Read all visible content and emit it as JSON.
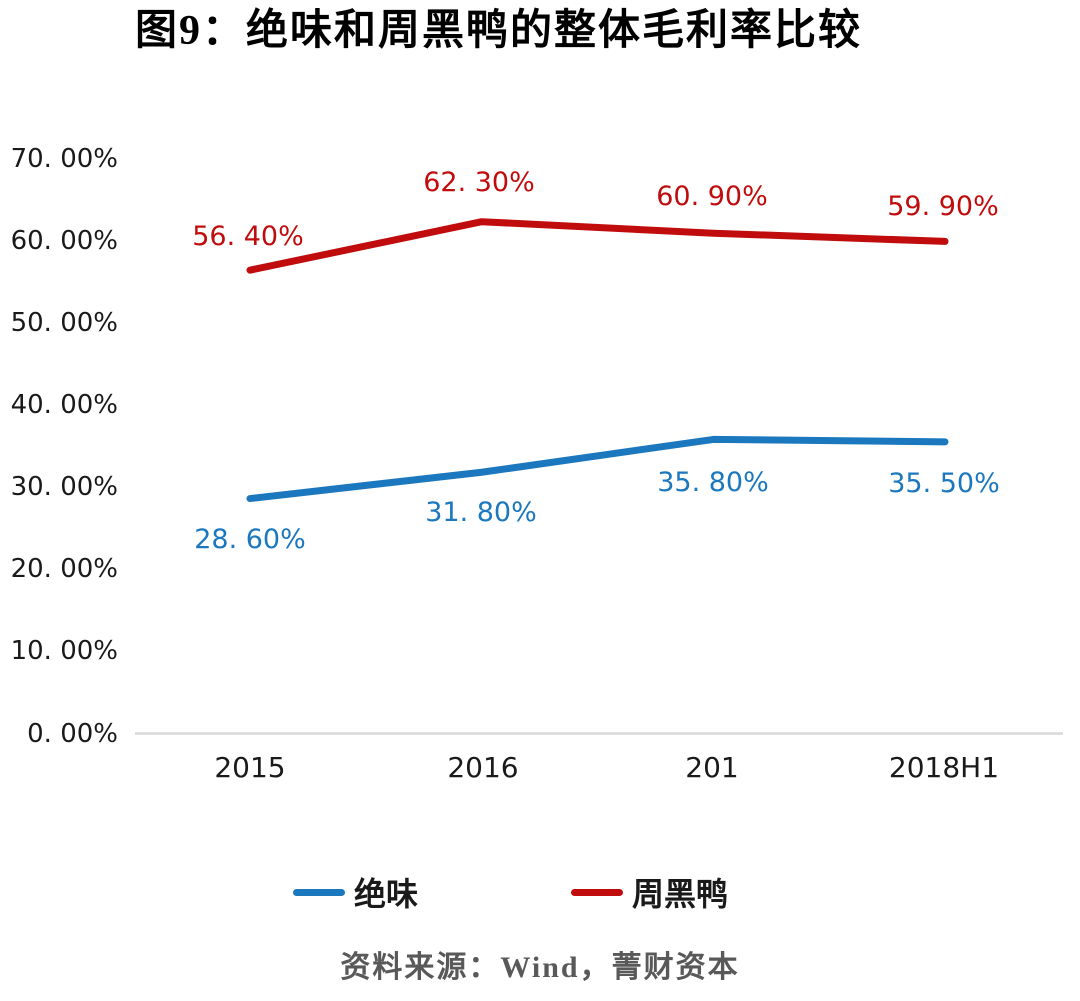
{
  "page": {
    "background": "#FFFFFF"
  },
  "chart": {
    "title": "图9：绝味和周黑鸭的整体毛利率比较",
    "source": "资料来源：Wind，菁财资本",
    "y_tick_labels": [
      "70. 00%",
      "60. 00%",
      "50. 00%",
      "40. 00%",
      "30. 00%",
      "20. 00%",
      "10. 00%",
      "0. 00%"
    ],
    "x_tick_labels": [
      "2015",
      "2016",
      "201",
      "2018H1"
    ],
    "colors": {
      "axis_line": "#D9D9D9",
      "tick_text": "#1A1A1A",
      "title_text": "#000000",
      "source_text": "#595959",
      "juewei_blue": "#1B78BE",
      "zhouheiya_red": "#C00C0C"
    }
  },
  "chart_data": {
    "type": "line",
    "title": "图9：绝味和周黑鸭的整体毛利率比较",
    "categories": [
      "2015",
      "2016",
      "201",
      "2018H1"
    ],
    "series": [
      {
        "name": "绝味",
        "color": "#1B78BE",
        "values": [
          28.6,
          31.8,
          35.8,
          35.5
        ],
        "point_labels": [
          "28. 60%",
          "31. 80%",
          "35. 80%",
          "35. 50%"
        ]
      },
      {
        "name": "周黑鸭",
        "color": "#C00C0C",
        "values": [
          56.4,
          62.3,
          60.9,
          59.9
        ],
        "point_labels": [
          "56. 40%",
          "62. 30%",
          "60. 90%",
          "59. 90%"
        ]
      }
    ],
    "xlabel": "",
    "ylabel": "",
    "ylim": [
      0,
      70
    ],
    "y_tick_step": 10,
    "grid": false,
    "markers": false,
    "legend_position": "bottom",
    "source_note": "资料来源：Wind，菁财资本"
  }
}
